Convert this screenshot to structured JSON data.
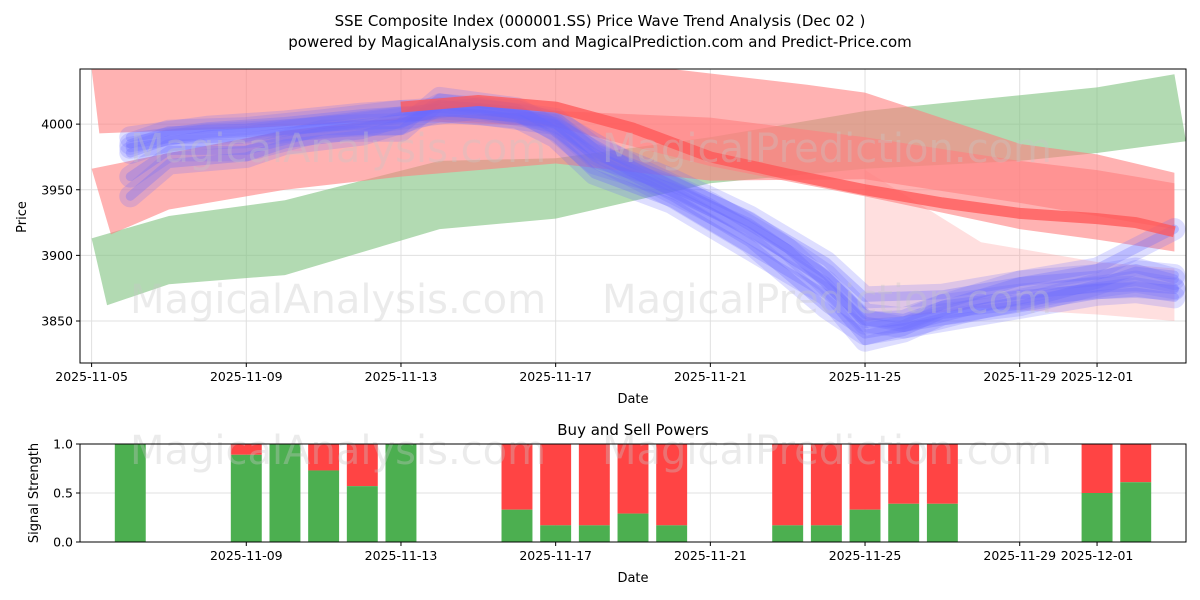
{
  "colors": {
    "buy": "#4caf50",
    "sell": "#ff4444",
    "up_band": "#7fc27f",
    "down_band": "#ff7f7f",
    "wave": "#6a6aff"
  },
  "watermarks": [
    "MagicalAnalysis.com",
    "MagicalPrediction.com"
  ],
  "chart_data": [
    {
      "type": "line",
      "title": "SSE Composite Index (000001.SS) Price Wave Trend Analysis (Dec 02 )",
      "subtitle": "powered by MagicalAnalysis.com and MagicalPrediction.com and Predict-Price.com",
      "xlabel": "Date",
      "ylabel": "Price",
      "xlim": [
        -0.3,
        28.3
      ],
      "ylim": [
        3818,
        4042
      ],
      "x_ticks": [
        {
          "pos": 0,
          "label": "2025-11-05"
        },
        {
          "pos": 4,
          "label": "2025-11-09"
        },
        {
          "pos": 8,
          "label": "2025-11-13"
        },
        {
          "pos": 12,
          "label": "2025-11-17"
        },
        {
          "pos": 16,
          "label": "2025-11-21"
        },
        {
          "pos": 20,
          "label": "2025-11-25"
        },
        {
          "pos": 24,
          "label": "2025-11-29"
        },
        {
          "pos": 26,
          "label": "2025-12-01"
        }
      ],
      "y_ticks": [
        3850,
        3900,
        3950,
        4000
      ],
      "bands": [
        {
          "name": "green-band",
          "color": "#7fc27f",
          "opacity": 0.6,
          "upper": [
            [
              0,
              3913
            ],
            [
              2,
              3930
            ],
            [
              5,
              3942
            ],
            [
              9,
              3972
            ],
            [
              12,
              3974
            ],
            [
              16,
              3990
            ],
            [
              20,
              4010
            ],
            [
              24,
              4022
            ],
            [
              26,
              4028
            ],
            [
              28,
              4038
            ]
          ],
          "lower": [
            [
              0.4,
              3862
            ],
            [
              2,
              3878
            ],
            [
              5,
              3885
            ],
            [
              9,
              3920
            ],
            [
              12,
              3928
            ],
            [
              16,
              3955
            ],
            [
              20,
              3966
            ],
            [
              24,
              3972
            ],
            [
              26,
              3978
            ],
            [
              28.3,
              3987
            ]
          ]
        },
        {
          "name": "red-band-upper",
          "color": "#ff7f7f",
          "opacity": 0.6,
          "upper": [
            [
              0,
              4042
            ],
            [
              4,
              4042
            ],
            [
              8,
              4042
            ],
            [
              12,
              4042
            ],
            [
              15,
              4042
            ],
            [
              18.5,
              4030
            ],
            [
              20,
              4024
            ],
            [
              24,
              3985
            ],
            [
              26,
              3977
            ],
            [
              28,
              3963
            ]
          ],
          "lower": [
            [
              0.2,
              3993
            ],
            [
              4,
              3997
            ],
            [
              8,
              4003
            ],
            [
              12,
              3998
            ],
            [
              16,
              3968
            ],
            [
              20,
              3945
            ],
            [
              24,
              3920
            ],
            [
              26,
              3912
            ],
            [
              28,
              3903
            ]
          ]
        },
        {
          "name": "red-band-lower",
          "color": "#ff7f7f",
          "opacity": 0.6,
          "upper": [
            [
              0,
              3966
            ],
            [
              2,
              3978
            ],
            [
              5,
              3995
            ],
            [
              8,
              4005
            ],
            [
              12,
              4010
            ],
            [
              16,
              4005
            ],
            [
              20,
              3990
            ],
            [
              24,
              3972
            ],
            [
              26,
              3965
            ],
            [
              28,
              3955
            ]
          ],
          "lower": [
            [
              0.5,
              3916
            ],
            [
              2,
              3935
            ],
            [
              5,
              3950
            ],
            [
              8,
              3960
            ],
            [
              12,
              3970
            ],
            [
              16,
              3957
            ],
            [
              20,
              3958
            ],
            [
              24,
              3940
            ],
            [
              26,
              3930
            ],
            [
              28,
              3920
            ]
          ]
        },
        {
          "name": "red-band-faint",
          "color": "#ff7f7f",
          "opacity": 0.25,
          "upper": [
            [
              20,
              3965
            ],
            [
              23,
              3910
            ],
            [
              26,
              3895
            ],
            [
              28,
              3890
            ]
          ],
          "lower": [
            [
              20,
              3850
            ],
            [
              23,
              3860
            ],
            [
              26,
              3855
            ],
            [
              28,
              3850
            ]
          ]
        }
      ],
      "red_trend": {
        "color": "#ff5555",
        "opacity": 0.75,
        "width": 11,
        "points": [
          [
            8,
            4013
          ],
          [
            10,
            4018
          ],
          [
            12,
            4013
          ],
          [
            14,
            3997
          ],
          [
            16,
            3975
          ],
          [
            18,
            3962
          ],
          [
            20,
            3950
          ],
          [
            22,
            3940
          ],
          [
            24,
            3932
          ],
          [
            26,
            3928
          ],
          [
            27,
            3925
          ],
          [
            28,
            3918
          ]
        ]
      },
      "wave_lines": [
        {
          "points": [
            [
              1,
              3985
            ],
            [
              2,
              3995
            ],
            [
              4,
              3997
            ],
            [
              6,
              4003
            ],
            [
              8,
              4010
            ],
            [
              10,
              4008
            ],
            [
              12,
              4000
            ],
            [
              13,
              3978
            ],
            [
              15,
              3948
            ],
            [
              17,
              3918
            ],
            [
              19,
              3880
            ],
            [
              20,
              3848
            ],
            [
              21,
              3850
            ],
            [
              22,
              3862
            ],
            [
              24,
              3870
            ],
            [
              26,
              3875
            ],
            [
              27,
              3876
            ],
            [
              28,
              3874
            ]
          ]
        },
        {
          "points": [
            [
              1,
              3978
            ],
            [
              2,
              3988
            ],
            [
              4,
              3990
            ],
            [
              6,
              3998
            ],
            [
              8,
              4000
            ],
            [
              9,
              4015
            ],
            [
              11,
              4010
            ],
            [
              12,
              4000
            ],
            [
              13,
              3975
            ],
            [
              15,
              3945
            ],
            [
              17,
              3910
            ],
            [
              19,
              3860
            ],
            [
              20,
              3840
            ],
            [
              21,
              3845
            ],
            [
              22,
              3850
            ],
            [
              24,
              3860
            ],
            [
              26,
              3870
            ],
            [
              27,
              3872
            ],
            [
              28,
              3868
            ]
          ]
        },
        {
          "points": [
            [
              1,
              3945
            ],
            [
              2,
              3970
            ],
            [
              4,
              3975
            ],
            [
              5,
              3985
            ],
            [
              7,
              3992
            ],
            [
              9,
              4010
            ],
            [
              11,
              4005
            ],
            [
              12,
              3990
            ],
            [
              13,
              3962
            ],
            [
              15,
              3940
            ],
            [
              17,
              3905
            ],
            [
              19,
              3870
            ],
            [
              20,
              3835
            ],
            [
              21,
              3842
            ],
            [
              22,
              3855
            ],
            [
              24,
              3862
            ],
            [
              26,
              3878
            ],
            [
              27,
              3888
            ],
            [
              28,
              3885
            ]
          ]
        },
        {
          "points": [
            [
              1,
              3960
            ],
            [
              2,
              3980
            ],
            [
              4,
              3980
            ],
            [
              6,
              3995
            ],
            [
              8,
              3995
            ],
            [
              9,
              4020
            ],
            [
              11,
              4012
            ],
            [
              12,
              3995
            ],
            [
              13,
              3970
            ],
            [
              15,
              3952
            ],
            [
              17,
              3925
            ],
            [
              19,
              3885
            ],
            [
              20,
              3855
            ],
            [
              21,
              3852
            ],
            [
              22,
              3862
            ],
            [
              24,
              3880
            ],
            [
              26,
              3890
            ],
            [
              27,
              3905
            ],
            [
              28,
              3920
            ]
          ]
        },
        {
          "points": [
            [
              1,
              3990
            ],
            [
              3,
              3998
            ],
            [
              5,
              4002
            ],
            [
              7,
              4008
            ],
            [
              9,
              4012
            ],
            [
              11,
              4008
            ],
            [
              12,
              4004
            ],
            [
              13,
              3982
            ],
            [
              15,
              3958
            ],
            [
              17,
              3930
            ],
            [
              19,
              3895
            ],
            [
              20,
              3868
            ],
            [
              22,
              3870
            ],
            [
              24,
              3880
            ],
            [
              26,
              3885
            ],
            [
              27,
              3890
            ],
            [
              28,
              3882
            ]
          ]
        },
        {
          "points": [
            [
              1,
              3982
            ],
            [
              3,
              3992
            ],
            [
              6,
              3997
            ],
            [
              8,
              4004
            ],
            [
              10,
              4012
            ],
            [
              12,
              4002
            ],
            [
              14,
              3968
            ],
            [
              16,
              3940
            ],
            [
              18,
              3905
            ],
            [
              20,
              3850
            ],
            [
              21,
              3845
            ],
            [
              23,
              3860
            ],
            [
              25,
              3872
            ],
            [
              27,
              3880
            ],
            [
              28,
              3875
            ]
          ]
        }
      ]
    },
    {
      "type": "bar",
      "title": "Buy and Sell Powers",
      "xlabel": "Date",
      "ylabel": "Signal Strength",
      "xlim": [
        -0.3,
        28.3
      ],
      "ylim": [
        0,
        1
      ],
      "y_ticks": [
        {
          "pos": 0,
          "label": "0.0"
        },
        {
          "pos": 0.5,
          "label": "0.5"
        },
        {
          "pos": 1,
          "label": "1.0"
        }
      ],
      "x_ticks": [
        {
          "pos": 4,
          "label": "2025-11-09"
        },
        {
          "pos": 8,
          "label": "2025-11-13"
        },
        {
          "pos": 12,
          "label": "2025-11-17"
        },
        {
          "pos": 16,
          "label": "2025-11-21"
        },
        {
          "pos": 20,
          "label": "2025-11-25"
        },
        {
          "pos": 24,
          "label": "2025-11-29"
        },
        {
          "pos": 26,
          "label": "2025-12-01"
        }
      ],
      "series": [
        {
          "name": "Buy",
          "color": "#4caf50"
        },
        {
          "name": "Sell",
          "color": "#ff4444"
        }
      ],
      "bars": [
        {
          "x": 1,
          "buy": 1.0
        },
        {
          "x": 4,
          "buy": 0.89
        },
        {
          "x": 5,
          "buy": 1.0
        },
        {
          "x": 6,
          "buy": 0.73
        },
        {
          "x": 7,
          "buy": 0.57
        },
        {
          "x": 8,
          "buy": 1.0
        },
        {
          "x": 11,
          "buy": 0.33
        },
        {
          "x": 12,
          "buy": 0.17
        },
        {
          "x": 13,
          "buy": 0.17
        },
        {
          "x": 14,
          "buy": 0.29
        },
        {
          "x": 15,
          "buy": 0.17
        },
        {
          "x": 18,
          "buy": 0.17
        },
        {
          "x": 19,
          "buy": 0.17
        },
        {
          "x": 20,
          "buy": 0.33
        },
        {
          "x": 21,
          "buy": 0.39
        },
        {
          "x": 22,
          "buy": 0.39
        },
        {
          "x": 26,
          "buy": 0.5
        },
        {
          "x": 27,
          "buy": 0.61
        }
      ]
    }
  ]
}
